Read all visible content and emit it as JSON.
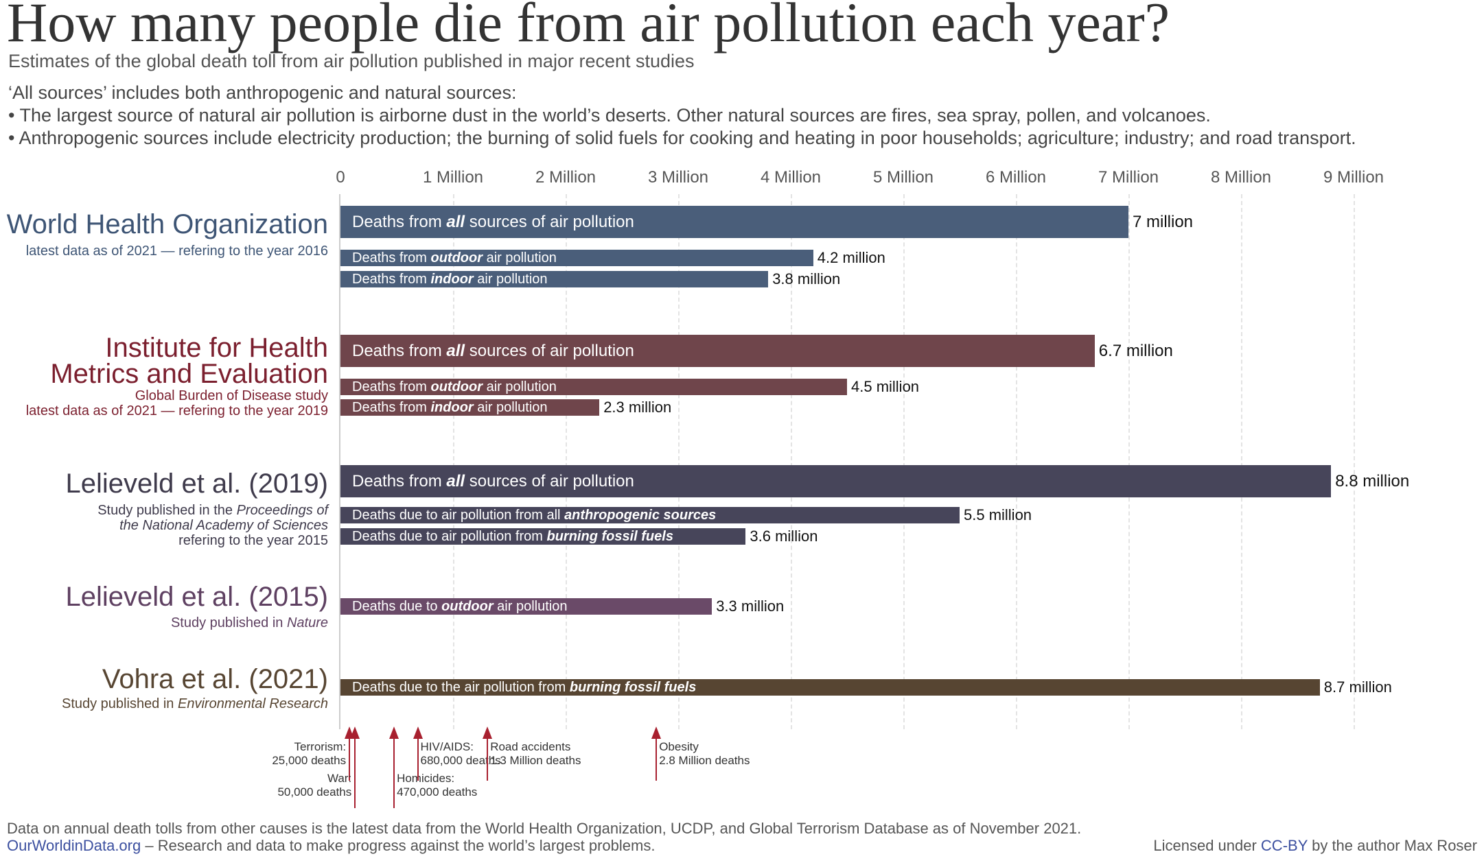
{
  "title": "How many people die from air pollution each year?",
  "subtitle": "Estimates of the global death toll from air pollution published in major recent studies",
  "notes": [
    "‘All sources’ includes both anthropogenic and natural sources:",
    "• The largest source of natural air pollution is airborne dust in the world’s deserts. Other natural sources are fires, sea spray, pollen, and volcanoes.",
    "• Anthropogenic sources include electricity production; the burning of solid fuels for cooking and heating in poor households; agriculture; industry; and road transport."
  ],
  "chart_data": {
    "type": "bar",
    "orientation": "horizontal",
    "xlim": [
      0,
      9.5
    ],
    "x_unit": "million deaths",
    "tick_labels": [
      "0",
      "1 Million",
      "2 Million",
      "3 Million",
      "4 Million",
      "5 Million",
      "6 Million",
      "7 Million",
      "8 Million",
      "9 Million"
    ],
    "ticks": [
      0,
      1,
      2,
      3,
      4,
      5,
      6,
      7,
      8,
      9
    ],
    "grid": true,
    "groups": [
      {
        "title": [
          "World Health Organization"
        ],
        "color": "#4a5e7a",
        "title_color": "#3e5575",
        "sub": [
          [
            [
              "latest data as of 2021 — refering to the year 2016",
              ""
            ]
          ]
        ],
        "bars": [
          {
            "size": "big",
            "pre": "Deaths from ",
            "em": "all",
            "post": " sources of air pollution",
            "value": 7.0,
            "value_label": "7 million"
          },
          {
            "size": "small",
            "pre": "Deaths from ",
            "em": "outdoor",
            "post": " air pollution",
            "value": 4.2,
            "value_label": "4.2 million"
          },
          {
            "size": "small",
            "pre": "Deaths from ",
            "em": "indoor",
            "post": " air pollution",
            "value": 3.8,
            "value_label": "3.8 million"
          }
        ]
      },
      {
        "title": [
          "Institute for Health",
          "Metrics and Evaluation"
        ],
        "color": "#6f454b",
        "title_color": "#7b1f2e",
        "sub": [
          [
            [
              "Global Burden of Disease study",
              ""
            ]
          ],
          [
            [
              "latest data as of 2021 — refering to the year 2019",
              ""
            ]
          ]
        ],
        "bars": [
          {
            "size": "big",
            "pre": "Deaths from ",
            "em": "all",
            "post": " sources of air pollution",
            "value": 6.7,
            "value_label": "6.7 million"
          },
          {
            "size": "small",
            "pre": "Deaths from ",
            "em": "outdoor",
            "post": " air pollution",
            "value": 4.5,
            "value_label": "4.5 million"
          },
          {
            "size": "small",
            "pre": "Deaths from ",
            "em": "indoor",
            "post": " air pollution",
            "value": 2.3,
            "value_label": "2.3 million"
          }
        ]
      },
      {
        "title": [
          "Lelieveld et al. (2019)"
        ],
        "color": "#47455a",
        "title_color": "#3f3b4c",
        "sub": [
          [
            [
              "Study published in the ",
              ""
            ],
            [
              "Proceedings of",
              "i"
            ]
          ],
          [
            [
              "the National Academy of Sciences",
              "i"
            ]
          ],
          [
            [
              "refering to the year 2015",
              ""
            ]
          ]
        ],
        "bars": [
          {
            "size": "big",
            "pre": "Deaths from ",
            "em": "all",
            "post": " sources of air pollution",
            "value": 8.8,
            "value_label": "8.8 million"
          },
          {
            "size": "small",
            "pre": "Deaths due to air pollution from all ",
            "em": "anthropogenic sources",
            "post": "",
            "value": 5.5,
            "value_label": "5.5 million"
          },
          {
            "size": "small",
            "pre": "Deaths due to air pollution from ",
            "em": "burning fossil fuels",
            "post": "",
            "value": 3.6,
            "value_label": "3.6 million"
          }
        ]
      },
      {
        "title": [
          "Lelieveld et al. (2015)"
        ],
        "color": "#6a4a68",
        "title_color": "#5e4061",
        "sub": [
          [
            [
              "Study published in ",
              ""
            ],
            [
              "Nature",
              "i"
            ]
          ]
        ],
        "bars": [
          {
            "size": "small",
            "pre": "Deaths due to ",
            "em": "outdoor",
            "post": " air pollution",
            "value": 3.3,
            "value_label": "3.3 million"
          }
        ]
      },
      {
        "title": [
          "Vohra et al. (2021)"
        ],
        "color": "#574532",
        "title_color": "#574532",
        "sub": [
          [
            [
              "Study published in ",
              ""
            ],
            [
              "Environmental Research",
              "i"
            ]
          ]
        ],
        "bars": [
          {
            "size": "small",
            "pre": "Deaths due to the air pollution from ",
            "em": "burning fossil fuels",
            "post": "",
            "value": 8.7,
            "value_label": "8.7 million"
          }
        ]
      }
    ],
    "references": [
      {
        "name": "Terrorism:",
        "deaths": "25,000 deaths",
        "value": 0.025,
        "side": "left",
        "len": "short"
      },
      {
        "name": "War:",
        "deaths": "50,000 deaths",
        "value": 0.05,
        "side": "left",
        "len": "long"
      },
      {
        "name": "Homicides:",
        "deaths": "470,000 deaths",
        "value": 0.47,
        "side": "right",
        "len": "long"
      },
      {
        "name": "HIV/AIDS:",
        "deaths": "680,000 deaths",
        "value": 0.68,
        "side": "right",
        "len": "short"
      },
      {
        "name": "Road accidents",
        "deaths": "1.3 Million deaths",
        "value": 1.3,
        "side": "right",
        "len": "short"
      },
      {
        "name": "Obesity",
        "deaths": "2.8 Million deaths",
        "value": 2.8,
        "side": "right",
        "len": "short"
      }
    ]
  },
  "footer": {
    "source": "Data on annual death tolls from other causes is the latest data from the World Health Organization, UCDP, and Global Terrorism Database as of November 2021.",
    "owid_link": "OurWorldinData.org",
    "owid_tagline": " – Research and data to make progress against the world’s largest problems.",
    "license_pre": "Licensed under ",
    "license_link": "CC-BY",
    "license_post": " by the author Max Roser"
  }
}
